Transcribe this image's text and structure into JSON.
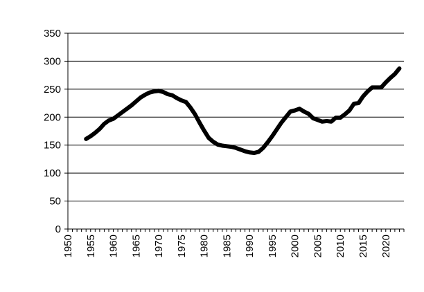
{
  "chart_data": {
    "type": "line",
    "title": "",
    "xlabel": "",
    "ylabel": "",
    "xlim": [
      1950,
      2024
    ],
    "ylim": [
      0,
      350
    ],
    "x_ticks": [
      1950,
      1955,
      1960,
      1965,
      1970,
      1975,
      1980,
      1985,
      1990,
      1995,
      2000,
      2005,
      2010,
      2015,
      2020
    ],
    "y_ticks": [
      0,
      50,
      100,
      150,
      200,
      250,
      300,
      350
    ],
    "grid": "horizontal",
    "legend": "none",
    "series": [
      {
        "color": "#000000",
        "x": [
          1954,
          1955,
          1956,
          1957,
          1958,
          1959,
          1960,
          1961,
          1962,
          1963,
          1964,
          1965,
          1966,
          1967,
          1968,
          1969,
          1970,
          1971,
          1972,
          1973,
          1974,
          1975,
          1976,
          1977,
          1978,
          1979,
          1980,
          1981,
          1982,
          1983,
          1984,
          1985,
          1986,
          1987,
          1988,
          1989,
          1990,
          1991,
          1992,
          1993,
          1994,
          1995,
          1996,
          1997,
          1998,
          1999,
          2000,
          2001,
          2002,
          2003,
          2004,
          2005,
          2006,
          2007,
          2008,
          2009,
          2010,
          2011,
          2012,
          2013,
          2014,
          2015,
          2016,
          2017,
          2018,
          2019,
          2020,
          2021,
          2022,
          2023
        ],
        "y": [
          161,
          166,
          172,
          179,
          188,
          194,
          197,
          203,
          209,
          215,
          221,
          228,
          235,
          240,
          244,
          246,
          247,
          245,
          241,
          239,
          234,
          230,
          227,
          217,
          205,
          190,
          176,
          163,
          156,
          151,
          149,
          148,
          147,
          145,
          142,
          139,
          137,
          136,
          138,
          145,
          155,
          166,
          178,
          190,
          200,
          210,
          212,
          215,
          210,
          206,
          198,
          195,
          192,
          193,
          192,
          199,
          199,
          205,
          212,
          224,
          225,
          237,
          246,
          253,
          253,
          253,
          262,
          270,
          277,
          287
        ]
      }
    ]
  }
}
